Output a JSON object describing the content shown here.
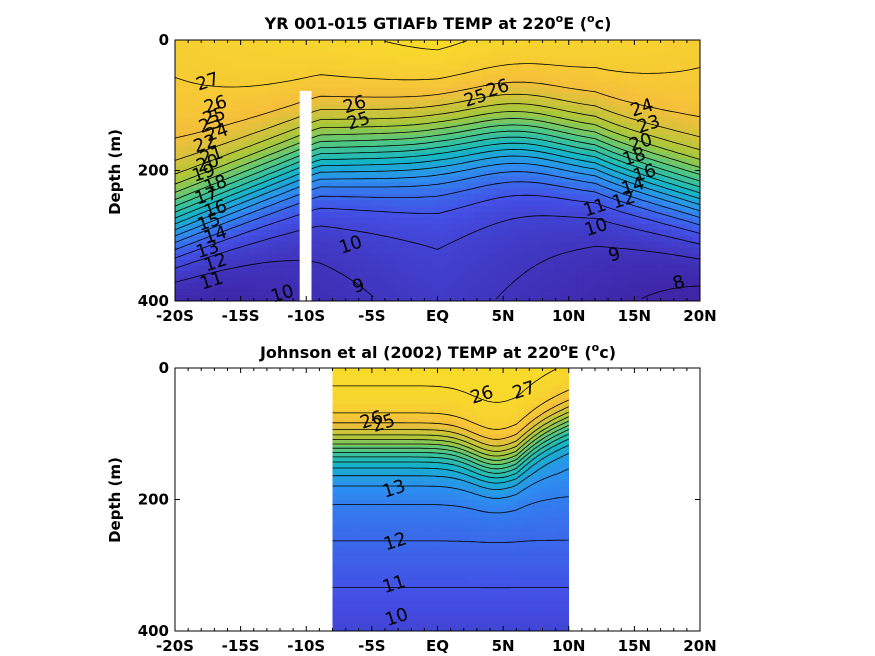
{
  "chart_data": [
    {
      "type": "contour",
      "title_prefix": "YR 001-015 GTIAFb TEMP at 220",
      "title_sup1": "o",
      "title_mid": "E (",
      "title_sup2": "o",
      "title_end": "c)",
      "ylabel": "Depth (m)",
      "x_ticks": [
        "-20S",
        "-15S",
        "-10S",
        "-5S",
        "EQ",
        "5N",
        "10N",
        "15N",
        "20N"
      ],
      "y_ticks": [
        "0",
        "200",
        "400"
      ],
      "xlim": [
        -20,
        20
      ],
      "ylim": [
        400,
        0
      ],
      "colormap": [
        "#3e26a8",
        "#4350e6",
        "#2d8ef0",
        "#14b5c6",
        "#4bc788",
        "#a8c73a",
        "#f5bf3b",
        "#f9e624"
      ],
      "mask": {
        "lat_from": -10.5,
        "lat_to": -9.6,
        "depth_from": 78,
        "depth_to": 400
      },
      "contour_labels": [
        {
          "text": "27",
          "lat": -17.5,
          "depth": 65
        },
        {
          "text": "26",
          "lat": -16.9,
          "depth": 100
        },
        {
          "text": "25",
          "lat": -17.0,
          "depth": 118
        },
        {
          "text": "24",
          "lat": -16.8,
          "depth": 143
        },
        {
          "text": "23",
          "lat": -17.3,
          "depth": 130
        },
        {
          "text": "22",
          "lat": -17.7,
          "depth": 160
        },
        {
          "text": "21",
          "lat": -17.2,
          "depth": 178
        },
        {
          "text": "20",
          "lat": -17.5,
          "depth": 190
        },
        {
          "text": "19",
          "lat": -17.8,
          "depth": 205
        },
        {
          "text": "18",
          "lat": -16.9,
          "depth": 222
        },
        {
          "text": "17",
          "lat": -17.6,
          "depth": 240
        },
        {
          "text": "16",
          "lat": -16.9,
          "depth": 260
        },
        {
          "text": "15",
          "lat": -17.4,
          "depth": 280
        },
        {
          "text": "14",
          "lat": -16.9,
          "depth": 300
        },
        {
          "text": "13",
          "lat": -17.5,
          "depth": 322
        },
        {
          "text": "12",
          "lat": -16.9,
          "depth": 342
        },
        {
          "text": "11",
          "lat": -17.2,
          "depth": 370
        },
        {
          "text": "10",
          "lat": -11.8,
          "depth": 390
        },
        {
          "text": "9",
          "lat": -6.0,
          "depth": 378
        },
        {
          "text": "10",
          "lat": -6.6,
          "depth": 315
        },
        {
          "text": "26",
          "lat": -6.3,
          "depth": 100
        },
        {
          "text": "25",
          "lat": -6.0,
          "depth": 125
        },
        {
          "text": "26",
          "lat": 4.6,
          "depth": 75
        },
        {
          "text": "25",
          "lat": 2.9,
          "depth": 90
        },
        {
          "text": "24",
          "lat": 15.6,
          "depth": 105
        },
        {
          "text": "23",
          "lat": 16.1,
          "depth": 130
        },
        {
          "text": "20",
          "lat": 15.5,
          "depth": 158
        },
        {
          "text": "18",
          "lat": 15.0,
          "depth": 180
        },
        {
          "text": "16",
          "lat": 15.8,
          "depth": 205
        },
        {
          "text": "14",
          "lat": 14.9,
          "depth": 225
        },
        {
          "text": "12",
          "lat": 14.2,
          "depth": 246
        },
        {
          "text": "11",
          "lat": 12.0,
          "depth": 258
        },
        {
          "text": "10",
          "lat": 12.1,
          "depth": 288
        },
        {
          "text": "9",
          "lat": 13.5,
          "depth": 330
        },
        {
          "text": "8",
          "lat": 18.4,
          "depth": 373
        }
      ]
    },
    {
      "type": "contour",
      "title_prefix": "Johnson et al (2002) TEMP at 220",
      "title_sup1": "o",
      "title_mid": "E (",
      "title_sup2": "o",
      "title_end": "c)",
      "ylabel": "Depth (m)",
      "x_ticks": [
        "-20S",
        "-15S",
        "-10S",
        "-5S",
        "EQ",
        "5N",
        "10N",
        "15N",
        "20N"
      ],
      "y_ticks": [
        "0",
        "200",
        "400"
      ],
      "xlim": [
        -20,
        20
      ],
      "ylim": [
        400,
        0
      ],
      "data_extent": [
        -8,
        10
      ],
      "colormap": [
        "#3e26a8",
        "#4350e6",
        "#2d8ef0",
        "#14b5c6",
        "#4bc788",
        "#a8c73a",
        "#f5bf3b",
        "#f9e624"
      ],
      "contour_labels": [
        {
          "text": "27",
          "lat": 6.6,
          "depth": 35
        },
        {
          "text": "26",
          "lat": 3.4,
          "depth": 42
        },
        {
          "text": "26",
          "lat": -5.0,
          "depth": 80
        },
        {
          "text": "25",
          "lat": -4.1,
          "depth": 85
        },
        {
          "text": "13",
          "lat": -3.3,
          "depth": 185
        },
        {
          "text": "12",
          "lat": -3.2,
          "depth": 265
        },
        {
          "text": "11",
          "lat": -3.3,
          "depth": 330
        },
        {
          "text": "10",
          "lat": -3.1,
          "depth": 380
        }
      ]
    }
  ]
}
